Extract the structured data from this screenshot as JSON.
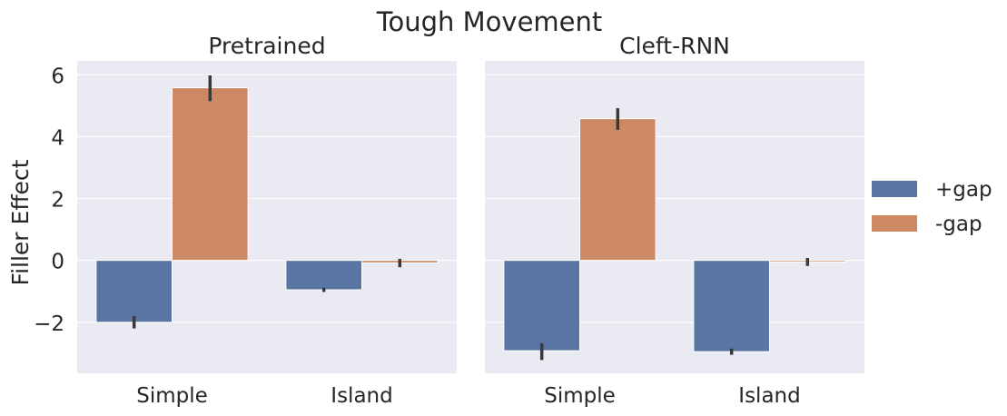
{
  "title": "Tough Movement",
  "legend": {
    "placement": "right",
    "entries": [
      {
        "label": "+gap",
        "color": "#5975a4"
      },
      {
        "label": "-gap",
        "color": "#cc8963"
      }
    ]
  },
  "colors": {
    "panel_background": "#eaeaf2",
    "grid": "#ffffff",
    "error_bar": "#3a3a3a"
  },
  "chart_data": [
    {
      "type": "bar",
      "title": "Pretrained",
      "ylabel": "Filler Effect",
      "xlabel": "",
      "categories": [
        "Simple",
        "Island"
      ],
      "series": [
        {
          "name": "+gap",
          "values": [
            -2.0,
            -0.95
          ],
          "error": [
            [
              -2.2,
              -1.8
            ],
            [
              -1.02,
              -0.88
            ]
          ]
        },
        {
          "name": "-gap",
          "values": [
            5.58,
            -0.08
          ],
          "error": [
            [
              5.15,
              5.98
            ],
            [
              -0.22,
              0.05
            ]
          ]
        }
      ],
      "ylim": [
        -3.65,
        6.45
      ],
      "yticks": [
        -2,
        0,
        2,
        4,
        6
      ],
      "ytick_labels": [
        "−2",
        "0",
        "2",
        "4",
        "6"
      ],
      "grid": true
    },
    {
      "type": "bar",
      "title": "Cleft-RNN",
      "ylabel": "",
      "xlabel": "",
      "categories": [
        "Simple",
        "Island"
      ],
      "series": [
        {
          "name": "+gap",
          "values": [
            -2.92,
            -2.95
          ],
          "error": [
            [
              -3.22,
              -2.68
            ],
            [
              -3.05,
              -2.85
            ]
          ]
        },
        {
          "name": "-gap",
          "values": [
            4.58,
            -0.05
          ],
          "error": [
            [
              4.22,
              4.92
            ],
            [
              -0.18,
              0.08
            ]
          ]
        }
      ],
      "ylim": [
        -3.65,
        6.45
      ],
      "yticks": [
        -2,
        0,
        2,
        4,
        6
      ],
      "grid": true
    }
  ]
}
